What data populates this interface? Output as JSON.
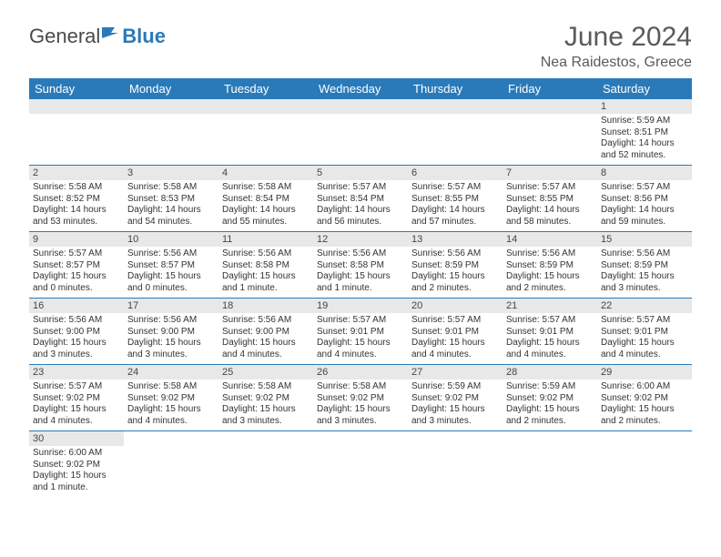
{
  "logo": {
    "text1": "General",
    "text2": "Blue"
  },
  "title": "June 2024",
  "location": "Nea Raidestos, Greece",
  "colors": {
    "header_bg": "#2a7ab9",
    "header_text": "#ffffff",
    "daynum_bg": "#e8e8e8",
    "row_border": "#2a7ab9",
    "title_color": "#5a5a5a"
  },
  "weekdays": [
    "Sunday",
    "Monday",
    "Tuesday",
    "Wednesday",
    "Thursday",
    "Friday",
    "Saturday"
  ],
  "weeks": [
    [
      null,
      null,
      null,
      null,
      null,
      null,
      {
        "n": "1",
        "sr": "Sunrise: 5:59 AM",
        "ss": "Sunset: 8:51 PM",
        "dl": "Daylight: 14 hours and 52 minutes."
      }
    ],
    [
      {
        "n": "2",
        "sr": "Sunrise: 5:58 AM",
        "ss": "Sunset: 8:52 PM",
        "dl": "Daylight: 14 hours and 53 minutes."
      },
      {
        "n": "3",
        "sr": "Sunrise: 5:58 AM",
        "ss": "Sunset: 8:53 PM",
        "dl": "Daylight: 14 hours and 54 minutes."
      },
      {
        "n": "4",
        "sr": "Sunrise: 5:58 AM",
        "ss": "Sunset: 8:54 PM",
        "dl": "Daylight: 14 hours and 55 minutes."
      },
      {
        "n": "5",
        "sr": "Sunrise: 5:57 AM",
        "ss": "Sunset: 8:54 PM",
        "dl": "Daylight: 14 hours and 56 minutes."
      },
      {
        "n": "6",
        "sr": "Sunrise: 5:57 AM",
        "ss": "Sunset: 8:55 PM",
        "dl": "Daylight: 14 hours and 57 minutes."
      },
      {
        "n": "7",
        "sr": "Sunrise: 5:57 AM",
        "ss": "Sunset: 8:55 PM",
        "dl": "Daylight: 14 hours and 58 minutes."
      },
      {
        "n": "8",
        "sr": "Sunrise: 5:57 AM",
        "ss": "Sunset: 8:56 PM",
        "dl": "Daylight: 14 hours and 59 minutes."
      }
    ],
    [
      {
        "n": "9",
        "sr": "Sunrise: 5:57 AM",
        "ss": "Sunset: 8:57 PM",
        "dl": "Daylight: 15 hours and 0 minutes."
      },
      {
        "n": "10",
        "sr": "Sunrise: 5:56 AM",
        "ss": "Sunset: 8:57 PM",
        "dl": "Daylight: 15 hours and 0 minutes."
      },
      {
        "n": "11",
        "sr": "Sunrise: 5:56 AM",
        "ss": "Sunset: 8:58 PM",
        "dl": "Daylight: 15 hours and 1 minute."
      },
      {
        "n": "12",
        "sr": "Sunrise: 5:56 AM",
        "ss": "Sunset: 8:58 PM",
        "dl": "Daylight: 15 hours and 1 minute."
      },
      {
        "n": "13",
        "sr": "Sunrise: 5:56 AM",
        "ss": "Sunset: 8:59 PM",
        "dl": "Daylight: 15 hours and 2 minutes."
      },
      {
        "n": "14",
        "sr": "Sunrise: 5:56 AM",
        "ss": "Sunset: 8:59 PM",
        "dl": "Daylight: 15 hours and 2 minutes."
      },
      {
        "n": "15",
        "sr": "Sunrise: 5:56 AM",
        "ss": "Sunset: 8:59 PM",
        "dl": "Daylight: 15 hours and 3 minutes."
      }
    ],
    [
      {
        "n": "16",
        "sr": "Sunrise: 5:56 AM",
        "ss": "Sunset: 9:00 PM",
        "dl": "Daylight: 15 hours and 3 minutes."
      },
      {
        "n": "17",
        "sr": "Sunrise: 5:56 AM",
        "ss": "Sunset: 9:00 PM",
        "dl": "Daylight: 15 hours and 3 minutes."
      },
      {
        "n": "18",
        "sr": "Sunrise: 5:56 AM",
        "ss": "Sunset: 9:00 PM",
        "dl": "Daylight: 15 hours and 4 minutes."
      },
      {
        "n": "19",
        "sr": "Sunrise: 5:57 AM",
        "ss": "Sunset: 9:01 PM",
        "dl": "Daylight: 15 hours and 4 minutes."
      },
      {
        "n": "20",
        "sr": "Sunrise: 5:57 AM",
        "ss": "Sunset: 9:01 PM",
        "dl": "Daylight: 15 hours and 4 minutes."
      },
      {
        "n": "21",
        "sr": "Sunrise: 5:57 AM",
        "ss": "Sunset: 9:01 PM",
        "dl": "Daylight: 15 hours and 4 minutes."
      },
      {
        "n": "22",
        "sr": "Sunrise: 5:57 AM",
        "ss": "Sunset: 9:01 PM",
        "dl": "Daylight: 15 hours and 4 minutes."
      }
    ],
    [
      {
        "n": "23",
        "sr": "Sunrise: 5:57 AM",
        "ss": "Sunset: 9:02 PM",
        "dl": "Daylight: 15 hours and 4 minutes."
      },
      {
        "n": "24",
        "sr": "Sunrise: 5:58 AM",
        "ss": "Sunset: 9:02 PM",
        "dl": "Daylight: 15 hours and 4 minutes."
      },
      {
        "n": "25",
        "sr": "Sunrise: 5:58 AM",
        "ss": "Sunset: 9:02 PM",
        "dl": "Daylight: 15 hours and 3 minutes."
      },
      {
        "n": "26",
        "sr": "Sunrise: 5:58 AM",
        "ss": "Sunset: 9:02 PM",
        "dl": "Daylight: 15 hours and 3 minutes."
      },
      {
        "n": "27",
        "sr": "Sunrise: 5:59 AM",
        "ss": "Sunset: 9:02 PM",
        "dl": "Daylight: 15 hours and 3 minutes."
      },
      {
        "n": "28",
        "sr": "Sunrise: 5:59 AM",
        "ss": "Sunset: 9:02 PM",
        "dl": "Daylight: 15 hours and 2 minutes."
      },
      {
        "n": "29",
        "sr": "Sunrise: 6:00 AM",
        "ss": "Sunset: 9:02 PM",
        "dl": "Daylight: 15 hours and 2 minutes."
      }
    ],
    [
      {
        "n": "30",
        "sr": "Sunrise: 6:00 AM",
        "ss": "Sunset: 9:02 PM",
        "dl": "Daylight: 15 hours and 1 minute."
      },
      null,
      null,
      null,
      null,
      null,
      null
    ]
  ]
}
